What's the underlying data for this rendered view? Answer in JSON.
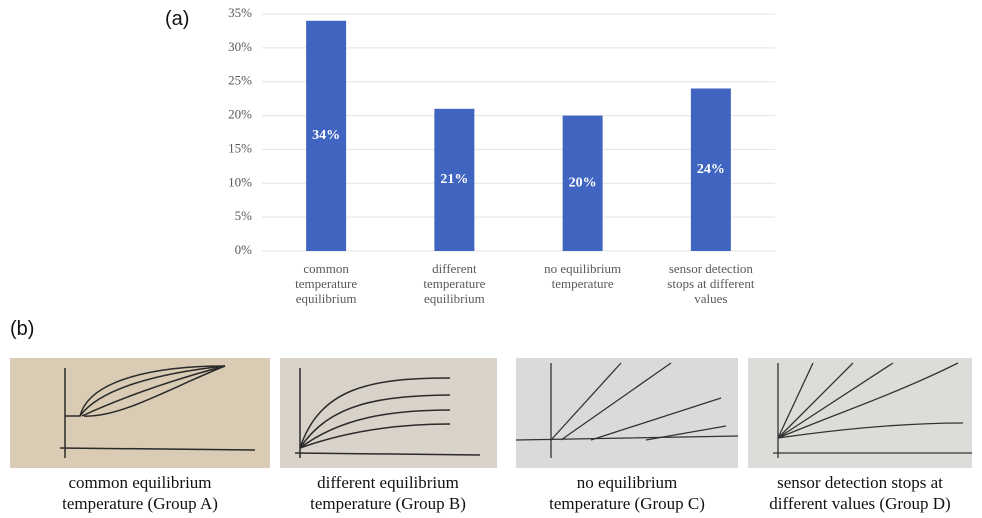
{
  "chart_data": {
    "type": "bar",
    "categories": [
      "common\ntemperature\nequilibrium",
      "different\ntemperature\nequilibrium",
      "no equilibrium\ntemperature",
      "sensor detection\nstops at different\nvalues"
    ],
    "values": [
      34,
      21,
      20,
      24
    ],
    "value_labels": [
      "34%",
      "21%",
      "20%",
      "24%"
    ],
    "color": "#4065c0",
    "ylim": [
      0,
      35
    ],
    "yticks": [
      {
        "value": 0,
        "label": "0%"
      },
      {
        "value": 5,
        "label": "5%"
      },
      {
        "value": 10,
        "label": "10%"
      },
      {
        "value": 15,
        "label": "15%"
      },
      {
        "value": 20,
        "label": "20%"
      },
      {
        "value": 25,
        "label": "25%"
      },
      {
        "value": 30,
        "label": "30%"
      },
      {
        "value": 35,
        "label": "35%"
      }
    ],
    "grid": true
  },
  "panels": {
    "a": "(a)",
    "b": "(b)"
  },
  "photos": [
    {
      "caption": "common equilibrium\ntemperature (Group A)"
    },
    {
      "caption": "different equilibrium\ntemperature (Group B)"
    },
    {
      "caption": "no equilibrium\ntemperature (Group C)"
    },
    {
      "caption": "sensor detection stops at\ndifferent values (Group D)"
    }
  ]
}
